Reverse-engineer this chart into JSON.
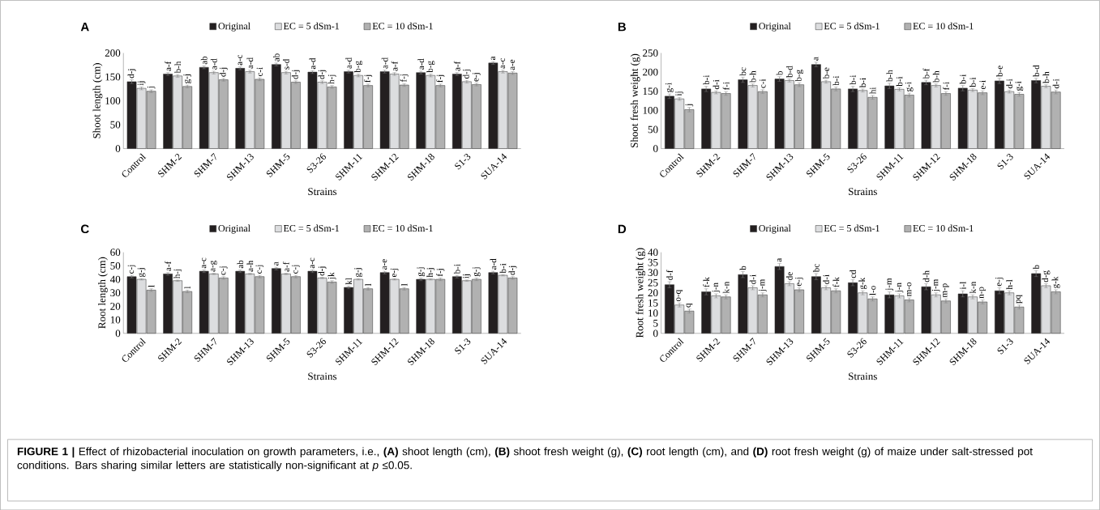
{
  "chart_data": [
    {
      "type": "bar",
      "title": "A",
      "xlabel": "Strains",
      "ylabel": "Shoot length (cm)",
      "legend": "top",
      "categories": [
        "Control",
        "SHM-2",
        "SHM-7",
        "SHM-13",
        "SHM-5",
        "S3-26",
        "SHM-11",
        "SHM-12",
        "SHM-18",
        "S1-3",
        "SUA-14"
      ],
      "ylim": [
        0,
        200
      ],
      "yticks": [
        0,
        50,
        100,
        150,
        200
      ],
      "series": [
        {
          "name": "Original",
          "color": "#231f20",
          "values": [
            140,
            156,
            170,
            168,
            176,
            160,
            161,
            161,
            159,
            156,
            179
          ],
          "errors": [
            4,
            3,
            3,
            3,
            3,
            3,
            3,
            3,
            3,
            3,
            3
          ],
          "value_labels": [
            "d-j",
            "a-f",
            "ab",
            "a-c",
            "ab",
            "a-d",
            "a-d",
            "a-d",
            "a-d",
            "a-f",
            "a"
          ]
        },
        {
          "name": "EC = 5 dSm-1",
          "color": "#dcdddf",
          "values": [
            126,
            152,
            159,
            161,
            159,
            139,
            153,
            156,
            153,
            140,
            161
          ],
          "errors": [
            3,
            3,
            3,
            3,
            3,
            3,
            3,
            3,
            3,
            3,
            3
          ],
          "value_labels": [
            "ij",
            "b-h",
            "a-d",
            "a-d",
            "s-d",
            "d-j",
            "b-g",
            "a-f",
            "b-g",
            "d-j",
            "a-c"
          ]
        },
        {
          "name": "EC = 10 dSm-1",
          "color": "#b1b1b1",
          "values": [
            120,
            130,
            144,
            145,
            139,
            129,
            132,
            133,
            132,
            134,
            158
          ],
          "errors": [
            3,
            3,
            3,
            3,
            3,
            3,
            3,
            3,
            3,
            3,
            3
          ],
          "value_labels": [
            "j",
            "g-j",
            "d-j",
            "c-i",
            "d-j",
            "h-j",
            "f-j",
            "f-j",
            "f-j",
            "e-j",
            "a-e"
          ]
        }
      ],
      "annotations": [
        "**FIGURE 1 |** Effect of rhizobacterial inoculation on growth parameters, i.e., **(A)** shoot length (cm), **(B)** shoot fresh weight (g), **(C)** root length (cm), and **(D)** root fresh weight (g) of maize under salt-stressed pot conditions. Bars sharing similar letters are statistically non-significant at *p* ≤0.05."
      ]
    },
    {
      "type": "bar",
      "title": "B",
      "xlabel": "Strains",
      "ylabel": "Shoot fresh weight (g)",
      "legend": "top",
      "categories": [
        "Control",
        "SHM-2",
        "SHM-7",
        "SHM-13",
        "SHM-5",
        "S3-26",
        "SHM-11",
        "SHM-12",
        "SHM-18",
        "S1-3",
        "SUA-14"
      ],
      "ylim": [
        0,
        250
      ],
      "yticks": [
        0,
        50,
        100,
        150,
        200,
        250
      ],
      "series": [
        {
          "name": "Original",
          "color": "#231f20",
          "values": [
            137,
            156,
            180,
            182,
            220,
            156,
            164,
            173,
            158,
            177,
            178
          ],
          "errors": [
            6,
            7,
            7,
            6,
            6,
            7,
            7,
            6,
            7,
            7,
            6
          ],
          "value_labels": [
            "g-i",
            "b-i",
            "bc",
            "b",
            "a",
            "b-i",
            "b-h",
            "b-f",
            "b-i",
            "b-e",
            "b-d"
          ]
        },
        {
          "name": "EC = 5 dSm-1",
          "color": "#dcdddf",
          "values": [
            130,
            147,
            165,
            178,
            175,
            152,
            155,
            165,
            153,
            149,
            163
          ],
          "errors": [
            4,
            4,
            4,
            4,
            4,
            4,
            4,
            4,
            4,
            4,
            4
          ],
          "value_labels": [
            "ij",
            "d-i",
            "b-h",
            "b-d",
            "b-e",
            "b-i",
            "b-i",
            "b-h",
            "b-i",
            "d-i",
            "b-h"
          ]
        },
        {
          "name": "EC = 10 dSm-1",
          "color": "#b1b1b1",
          "values": [
            102,
            144,
            149,
            167,
            156,
            134,
            140,
            144,
            146,
            142,
            148
          ],
          "errors": [
            6,
            5,
            5,
            5,
            5,
            5,
            5,
            5,
            5,
            5,
            5
          ],
          "value_labels": [
            "j",
            "f-i",
            "c-i",
            "b-g",
            "b-i",
            "hi",
            "g-i",
            "f-i",
            "e-i",
            "g-i",
            "d-i"
          ]
        }
      ]
    },
    {
      "type": "bar",
      "title": "C",
      "xlabel": "Strains",
      "ylabel": "Root length (cm)",
      "legend": "top",
      "categories": [
        "Control",
        "SHM-2",
        "SHM-7",
        "SHM-13",
        "SHM-5",
        "S3-26",
        "SHM-11",
        "SHM-12",
        "SHM-18",
        "S1-3",
        "SUA-14"
      ],
      "ylim": [
        0,
        60
      ],
      "yticks": [
        0,
        10,
        20,
        30,
        40,
        50,
        60
      ],
      "series": [
        {
          "name": "Original",
          "color": "#231f20",
          "values": [
            42,
            44,
            46,
            46,
            48,
            46,
            34,
            45,
            40,
            42,
            45
          ],
          "errors": [
            1,
            1,
            1,
            1,
            1,
            1,
            1,
            1,
            1,
            1,
            1
          ],
          "value_labels": [
            "c-j",
            "a-f",
            "a-c",
            "ab",
            "a",
            "a-c",
            "kl",
            "a-e",
            "g-j",
            "b-i",
            "a-d"
          ]
        },
        {
          "name": "EC = 5 dSm-1",
          "color": "#dcdddf",
          "values": [
            40,
            39,
            44,
            44,
            44,
            41,
            40,
            40,
            40,
            39,
            43
          ],
          "errors": [
            0.5,
            0.5,
            0.5,
            0.5,
            0.5,
            0.5,
            0.5,
            0.5,
            0.5,
            0.5,
            0.5
          ],
          "value_labels": [
            "g-j",
            "h-j",
            "a-g",
            "a-h",
            "a-f",
            "d-j",
            "g-j",
            "e-j",
            "h-j",
            "ij",
            "b-i"
          ]
        },
        {
          "name": "EC = 10 dSm-1",
          "color": "#b1b1b1",
          "values": [
            32,
            31,
            41,
            42,
            42,
            38,
            33,
            33,
            40,
            40,
            41
          ],
          "errors": [
            1,
            1,
            1,
            1,
            1,
            1,
            1,
            1,
            1,
            1,
            1
          ],
          "value_labels": [
            "l",
            "l",
            "c-j",
            "c-j",
            "c-j",
            "jk",
            "l",
            "l",
            "f-j",
            "g-j",
            "d-j"
          ]
        }
      ]
    },
    {
      "type": "bar",
      "title": "D",
      "xlabel": "Strains",
      "ylabel": "Root fresh weight (g)",
      "legend": "top",
      "categories": [
        "Control",
        "SHM-2",
        "SHM-7",
        "SHM-13",
        "SHM-5",
        "S3-26",
        "SHM-11",
        "SHM-12",
        "SHM-18",
        "S1-3",
        "SUA-14"
      ],
      "ylim": [
        0,
        40
      ],
      "yticks": [
        0,
        5,
        10,
        15,
        20,
        25,
        30,
        35,
        40
      ],
      "series": [
        {
          "name": "Original",
          "color": "#231f20",
          "values": [
            24,
            20.5,
            29,
            33,
            28,
            25,
            19,
            23,
            19.5,
            21,
            29.5
          ],
          "errors": [
            1.5,
            1.5,
            1.5,
            1.5,
            1.5,
            1.5,
            1.5,
            1.5,
            1.5,
            1.5,
            1.5
          ],
          "value_labels": [
            "d-f",
            "f-k",
            "b",
            "a",
            "bc",
            "cd",
            "j-m",
            "d-h",
            "i-l",
            "e-j",
            "b"
          ]
        },
        {
          "name": "EC = 5 dSm-1",
          "color": "#dcdddf",
          "values": [
            14,
            18.5,
            22.5,
            24.5,
            22.5,
            20,
            18.5,
            19,
            18,
            20,
            23.5
          ],
          "errors": [
            1,
            1,
            1,
            1,
            1,
            1,
            1,
            1,
            1,
            1,
            1
          ],
          "value_labels": [
            "o-q",
            "j-n",
            "d-i",
            "de",
            "d-i",
            "g-k",
            "j-n",
            "j-m",
            "k-n",
            "h-l",
            "d-g"
          ]
        },
        {
          "name": "EC = 10 dSm-1",
          "color": "#b1b1b1",
          "values": [
            11,
            18,
            19,
            21.5,
            21,
            17,
            16.5,
            16,
            15.5,
            13,
            20.5
          ],
          "errors": [
            1,
            1,
            1,
            1,
            1,
            1,
            1,
            1,
            1,
            1,
            1
          ],
          "value_labels": [
            "q",
            "k-n",
            "j-m",
            "e-j",
            "f-k",
            "l-o",
            "m-o",
            "m-p",
            "n-p",
            "pq",
            "g-k"
          ]
        }
      ]
    }
  ]
}
